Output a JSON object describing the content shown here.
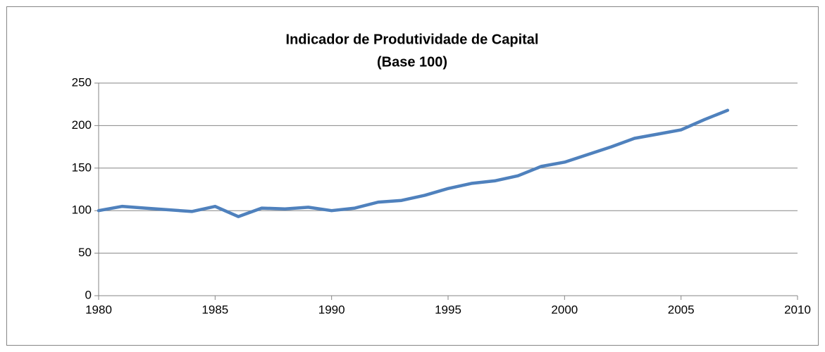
{
  "chart_data": {
    "type": "line",
    "title": "Indicador de Produtividade de Capital",
    "subtitle": "(Base 100)",
    "x": [
      1980,
      1981,
      1982,
      1983,
      1984,
      1985,
      1986,
      1987,
      1988,
      1989,
      1990,
      1991,
      1992,
      1993,
      1994,
      1995,
      1996,
      1997,
      1998,
      1999,
      2000,
      2001,
      2002,
      2003,
      2004,
      2005,
      2006,
      2007
    ],
    "series": [
      {
        "name": "Indicador de Produtividade de Capital",
        "color": "#4f81bd",
        "values": [
          100,
          105,
          103,
          101,
          99,
          105,
          93,
          103,
          102,
          104,
          100,
          103,
          110,
          112,
          118,
          126,
          132,
          135,
          141,
          152,
          157,
          166,
          175,
          185,
          190,
          195,
          207,
          218
        ]
      }
    ],
    "xlim": [
      1980,
      2010
    ],
    "xticks": [
      1980,
      1985,
      1990,
      1995,
      2000,
      2005,
      2010
    ],
    "ylim": [
      0,
      250
    ],
    "yticks": [
      0,
      50,
      100,
      150,
      200,
      250
    ],
    "grid": true
  }
}
